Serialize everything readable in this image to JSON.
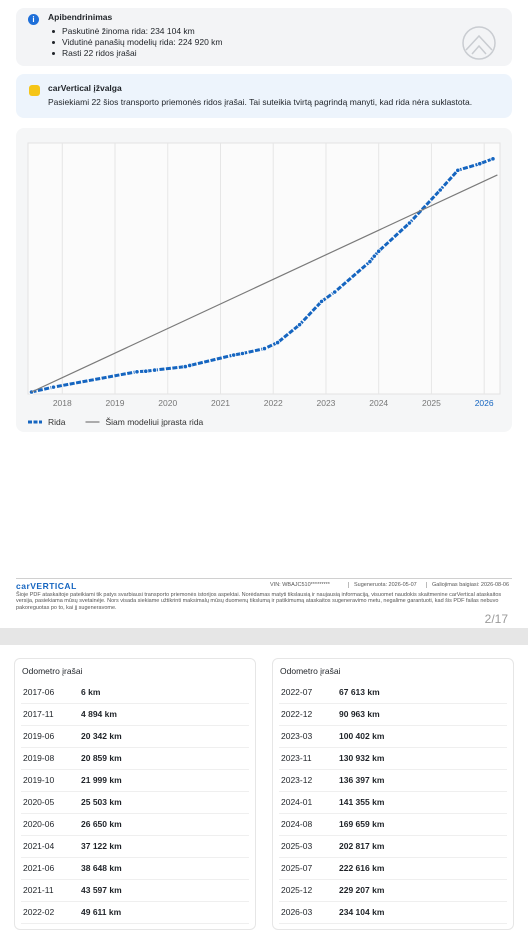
{
  "summary": {
    "title": "Apibendrinimas",
    "bullets": [
      "Paskutinė žinoma rida: 234 104 km",
      "Vidutinė panašių modelių rida: 224 920 km",
      "Rasti 22 ridos įrašai"
    ]
  },
  "insight": {
    "title": "carVertical įžvalga",
    "text": "Pasiekiami 22 šios transporto priemonės ridos įrašai. Tai suteikia tvirtą pagrindą manyti, kad rida nėra suklastota."
  },
  "chart_data": {
    "type": "line",
    "x": [
      "2017-06",
      "2017-11",
      "2019-06",
      "2019-08",
      "2019-10",
      "2020-05",
      "2020-06",
      "2021-04",
      "2021-06",
      "2021-11",
      "2022-02",
      "2022-07",
      "2022-12",
      "2023-03",
      "2023-11",
      "2023-12",
      "2024-01",
      "2024-08",
      "2025-03",
      "2025-07",
      "2025-12",
      "2026-03"
    ],
    "series": [
      {
        "name": "Rida",
        "color": "#1565c0",
        "values": [
          6,
          4894,
          20342,
          20859,
          21999,
          25503,
          26650,
          37122,
          38648,
          43597,
          49611,
          67613,
          90963,
          100402,
          130932,
          136397,
          141355,
          169659,
          202817,
          222616,
          229207,
          234104
        ]
      },
      {
        "name": "Šiam modeliui įprasta rida",
        "color": "#7a7a7a",
        "x": [
          "2017-06",
          "2026-04"
        ],
        "values": [
          0,
          218000
        ]
      }
    ],
    "xlim": [
      2017.35,
      2026.3
    ],
    "xticks": [
      2018,
      2019,
      2020,
      2021,
      2022,
      2023,
      2024,
      2025,
      2026
    ],
    "ylim": [
      0,
      250000
    ],
    "grid": true
  },
  "footer": {
    "logo": "carVERTICAL",
    "vin": "VIN: WBAJC510*********",
    "generated": "Sugeneruota: 2026-05-07",
    "expires": "Galiojimas baigiasi: 2026-08-06",
    "disclaimer": "Šioje PDF ataskaitoje pateikiami tik patys svarbiausi transporto priemonės istorijos aspektai. Norėdamas matyti tikslausią ir naujausią informaciją, visuomet naudokis skaitmenine carVertical ataskaitos versija, pasiekiama mūsų svetainėje. Nors visada siekiame užtikrinti maksimalų mūsų duomenų tikslumą ir patikimumą ataskaitos sugeneravimo metu, negalime garantuoti, kad šis PDF failas nebuvo pakoreguotas po to, kai jį sugeneravome.",
    "page": "2/17"
  },
  "tables": [
    {
      "title": "Odometro įrašai",
      "rows": [
        [
          "2017-06",
          "6 km"
        ],
        [
          "2017-11",
          "4 894 km"
        ],
        [
          "2019-06",
          "20 342 km"
        ],
        [
          "2019-08",
          "20 859 km"
        ],
        [
          "2019-10",
          "21 999 km"
        ],
        [
          "2020-05",
          "25 503 km"
        ],
        [
          "2020-06",
          "26 650 km"
        ],
        [
          "2021-04",
          "37 122 km"
        ],
        [
          "2021-06",
          "38 648 km"
        ],
        [
          "2021-11",
          "43 597 km"
        ],
        [
          "2022-02",
          "49 611 km"
        ]
      ]
    },
    {
      "title": "Odometro įrašai",
      "rows": [
        [
          "2022-07",
          "67 613 km"
        ],
        [
          "2022-12",
          "90 963 km"
        ],
        [
          "2023-03",
          "100 402 km"
        ],
        [
          "2023-11",
          "130 932 km"
        ],
        [
          "2023-12",
          "136 397 km"
        ],
        [
          "2024-01",
          "141 355 km"
        ],
        [
          "2024-08",
          "169 659 km"
        ],
        [
          "2025-03",
          "202 817 km"
        ],
        [
          "2025-07",
          "222 616 km"
        ],
        [
          "2025-12",
          "229 207 km"
        ],
        [
          "2026-03",
          "234 104 km"
        ]
      ]
    }
  ]
}
